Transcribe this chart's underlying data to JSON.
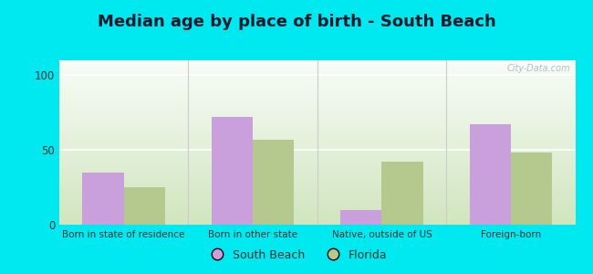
{
  "title": "Median age by place of birth - South Beach",
  "categories": [
    "Born in state of residence",
    "Born in other state",
    "Native, outside of US",
    "Foreign-born"
  ],
  "south_beach": [
    35,
    72,
    10,
    67
  ],
  "florida": [
    25,
    57,
    42,
    48
  ],
  "south_beach_color": "#c9a0dc",
  "florida_color": "#b5c98e",
  "background_outer": "#00e8f0",
  "ylim": [
    0,
    110
  ],
  "yticks": [
    0,
    50,
    100
  ],
  "bar_width": 0.32,
  "legend_south_beach": "South Beach",
  "legend_florida": "Florida",
  "title_fontsize": 13,
  "axis_label_fontsize": 7.5,
  "legend_fontsize": 9,
  "watermark": "City-Data.com",
  "separator_color": "#cccccc",
  "grid_color": "#dddddd"
}
